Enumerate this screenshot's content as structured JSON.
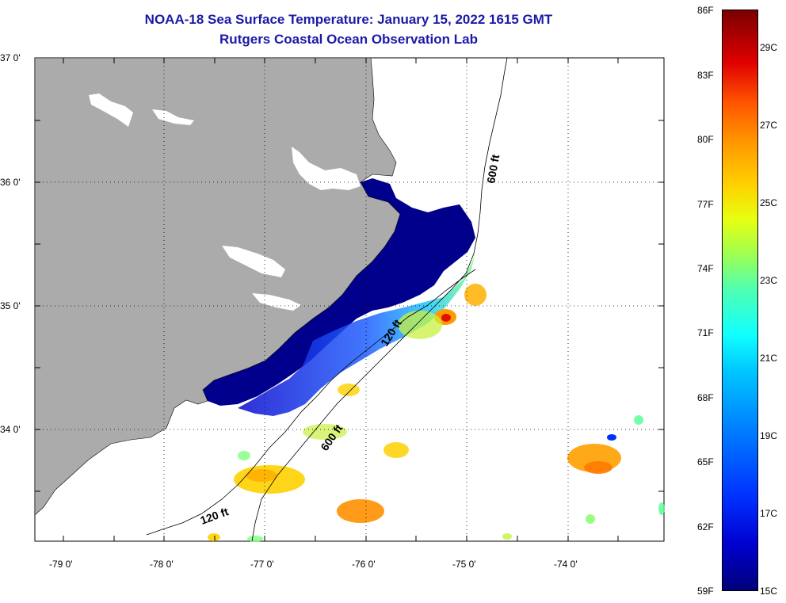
{
  "title": {
    "line1": "NOAA-18 Sea Surface Temperature:  January 15, 2022 1615 GMT",
    "line2": "Rutgers Coastal Ocean Observation Lab"
  },
  "axes": {
    "latitude_labels": [
      "37 0'",
      "36 0'",
      "35 0'",
      "34 0'"
    ],
    "longitude_labels": [
      "-79 0'",
      "-78 0'",
      "-77 0'",
      "-76 0'",
      "-75 0'",
      "-74 0'"
    ]
  },
  "contours": {
    "label_600_north": "600 ft",
    "label_600_south": "600 ft",
    "label_120_mid": "120 ft",
    "label_120_south": "120 ft"
  },
  "colorbar": {
    "fahrenheit": [
      "86F",
      "83F",
      "80F",
      "77F",
      "74F",
      "71F",
      "68F",
      "65F",
      "62F",
      "59F"
    ],
    "celsius": [
      "29C",
      "27C",
      "25C",
      "23C",
      "21C",
      "19C",
      "17C",
      "15C"
    ]
  },
  "colors": {
    "title": "#1a1aa8",
    "land": "#ababab",
    "cold": "#00008c",
    "warm": "#ff9a00"
  }
}
